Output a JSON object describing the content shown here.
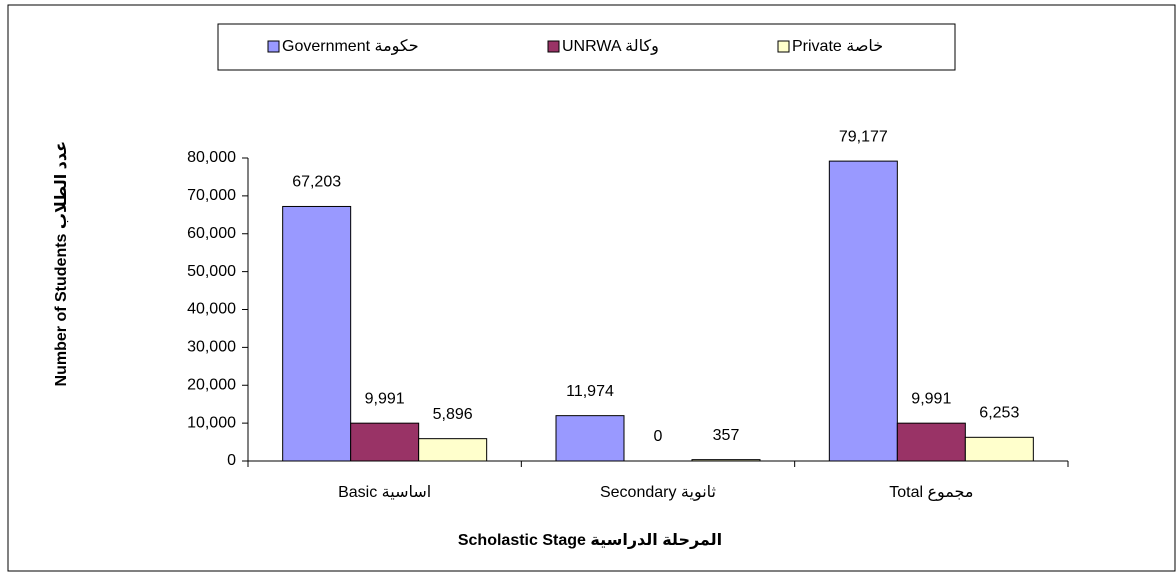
{
  "chart_data": {
    "type": "bar",
    "categories": [
      "Basic اساسية",
      "Secondary ثانوية",
      "Total مجموع"
    ],
    "series": [
      {
        "name": "Government حكومة",
        "color": "#9999ff",
        "values": [
          67203,
          11974,
          79177
        ],
        "value_labels": [
          "67,203",
          "11,974",
          "79,177"
        ]
      },
      {
        "name": "UNRWA وكالة",
        "color": "#993366",
        "values": [
          9991,
          0,
          9991
        ],
        "value_labels": [
          "9,991",
          "0",
          "9,991"
        ]
      },
      {
        "name": "Private خاصة",
        "color": "#ffffcc",
        "values": [
          5896,
          357,
          6253
        ],
        "value_labels": [
          "5,896",
          "357",
          "6,253"
        ]
      }
    ],
    "ylim": [
      0,
      80000
    ],
    "yticks": [
      0,
      {
        "value": 10000,
        "label": "10,000"
      },
      {
        "value": 20000,
        "label": "20,000"
      },
      {
        "value": 30000,
        "label": "30,000"
      },
      {
        "value": 40000,
        "label": "40,000"
      },
      {
        "value": 50000,
        "label": "50,000"
      },
      {
        "value": 60000,
        "label": "60,000"
      },
      {
        "value": 70000,
        "label": "70,000"
      },
      {
        "value": 80000,
        "label": "80,000"
      }
    ],
    "ylabel": "Number of Students",
    "ylabel_arabic": "عدد الطلاب",
    "xlabel": "Scholastic Stage   المرحلة الدراسية"
  }
}
